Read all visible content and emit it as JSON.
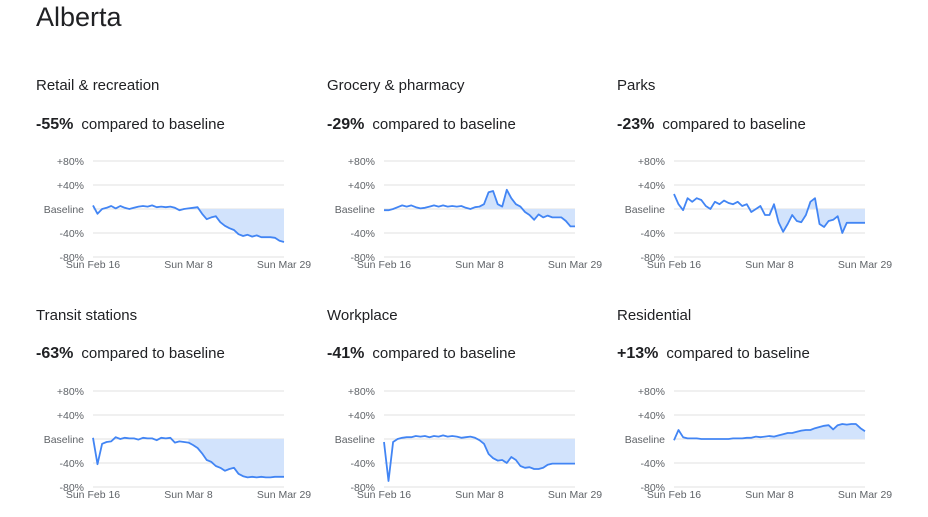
{
  "title": "Alberta",
  "summary_suffix": "compared to baseline",
  "axis": {
    "y_ticks": [
      {
        "label": "+80%",
        "value": 80
      },
      {
        "label": "+40%",
        "value": 40
      },
      {
        "label": "Baseline",
        "value": 0
      },
      {
        "label": "-40%",
        "value": -40
      },
      {
        "label": "-80%",
        "value": -80
      }
    ],
    "x_ticks": [
      {
        "label": "Sun Feb 16",
        "day": 0
      },
      {
        "label": "Sun Mar 8",
        "day": 21
      },
      {
        "label": "Sun Mar 29",
        "day": 42
      }
    ]
  },
  "colors": {
    "line": "#4285f4",
    "fill": "#d2e3fc",
    "grid": "#e0e0e0"
  },
  "chart_data": [
    {
      "type": "line",
      "title": "Retail & recreation",
      "summary": "-55%",
      "ylim": [
        -80,
        80
      ],
      "x_start": "Sun Feb 16",
      "values": [
        6,
        -8,
        0,
        2,
        5,
        1,
        5,
        2,
        0,
        2,
        4,
        5,
        4,
        6,
        3,
        4,
        3,
        4,
        2,
        -2,
        0,
        1,
        2,
        3,
        -8,
        -17,
        -14,
        -12,
        -22,
        -28,
        -32,
        -35,
        -42,
        -45,
        -43,
        -46,
        -44,
        -47,
        -47,
        -47,
        -48,
        -53,
        -55
      ]
    },
    {
      "type": "line",
      "title": "Grocery & pharmacy",
      "summary": "-29%",
      "ylim": [
        -80,
        80
      ],
      "x_start": "Sun Feb 16",
      "values": [
        -2,
        -2,
        0,
        3,
        6,
        4,
        6,
        3,
        1,
        2,
        4,
        6,
        4,
        6,
        4,
        5,
        4,
        5,
        2,
        0,
        3,
        4,
        8,
        28,
        30,
        8,
        4,
        32,
        18,
        8,
        4,
        -5,
        -10,
        -18,
        -9,
        -14,
        -11,
        -14,
        -14,
        -14,
        -20,
        -29,
        -29
      ]
    },
    {
      "type": "line",
      "title": "Parks",
      "summary": "-23%",
      "ylim": [
        -80,
        80
      ],
      "x_start": "Sun Feb 16",
      "values": [
        25,
        8,
        -2,
        18,
        12,
        18,
        15,
        5,
        0,
        12,
        8,
        14,
        10,
        8,
        12,
        5,
        8,
        -5,
        0,
        5,
        -10,
        -10,
        8,
        -22,
        -38,
        -25,
        -10,
        -20,
        -22,
        -10,
        12,
        18,
        -25,
        -30,
        -20,
        -18,
        -12,
        -40,
        -23,
        -23,
        -23,
        -23,
        -23
      ]
    },
    {
      "type": "line",
      "title": "Transit stations",
      "summary": "-63%",
      "ylim": [
        -80,
        80
      ],
      "x_start": "Sun Feb 16",
      "values": [
        2,
        -42,
        -8,
        -5,
        -4,
        3,
        0,
        2,
        1,
        1,
        -1,
        2,
        1,
        1,
        -2,
        2,
        1,
        2,
        -6,
        -4,
        -5,
        -6,
        -10,
        -15,
        -24,
        -35,
        -38,
        -45,
        -48,
        -53,
        -50,
        -48,
        -58,
        -62,
        -64,
        -63,
        -64,
        -63,
        -64,
        -64,
        -63,
        -63,
        -63
      ]
    },
    {
      "type": "line",
      "title": "Workplace",
      "summary": "-41%",
      "ylim": [
        -80,
        80
      ],
      "x_start": "Sun Feb 16",
      "values": [
        -5,
        -70,
        -5,
        0,
        2,
        3,
        3,
        5,
        4,
        5,
        3,
        5,
        4,
        6,
        4,
        5,
        4,
        2,
        3,
        4,
        2,
        -2,
        -8,
        -25,
        -32,
        -36,
        -35,
        -40,
        -30,
        -35,
        -45,
        -48,
        -47,
        -50,
        -50,
        -48,
        -43,
        -41,
        -41,
        -41,
        -41,
        -41,
        -41
      ]
    },
    {
      "type": "line",
      "title": "Residential",
      "summary": "+13%",
      "ylim": [
        -80,
        80
      ],
      "x_start": "Sun Feb 16",
      "values": [
        -2,
        15,
        3,
        1,
        1,
        1,
        0,
        0,
        0,
        0,
        0,
        0,
        0,
        1,
        1,
        1,
        2,
        2,
        4,
        3,
        4,
        5,
        4,
        6,
        8,
        10,
        10,
        12,
        14,
        15,
        15,
        18,
        20,
        22,
        23,
        16,
        23,
        25,
        24,
        25,
        25,
        18,
        13
      ]
    }
  ]
}
